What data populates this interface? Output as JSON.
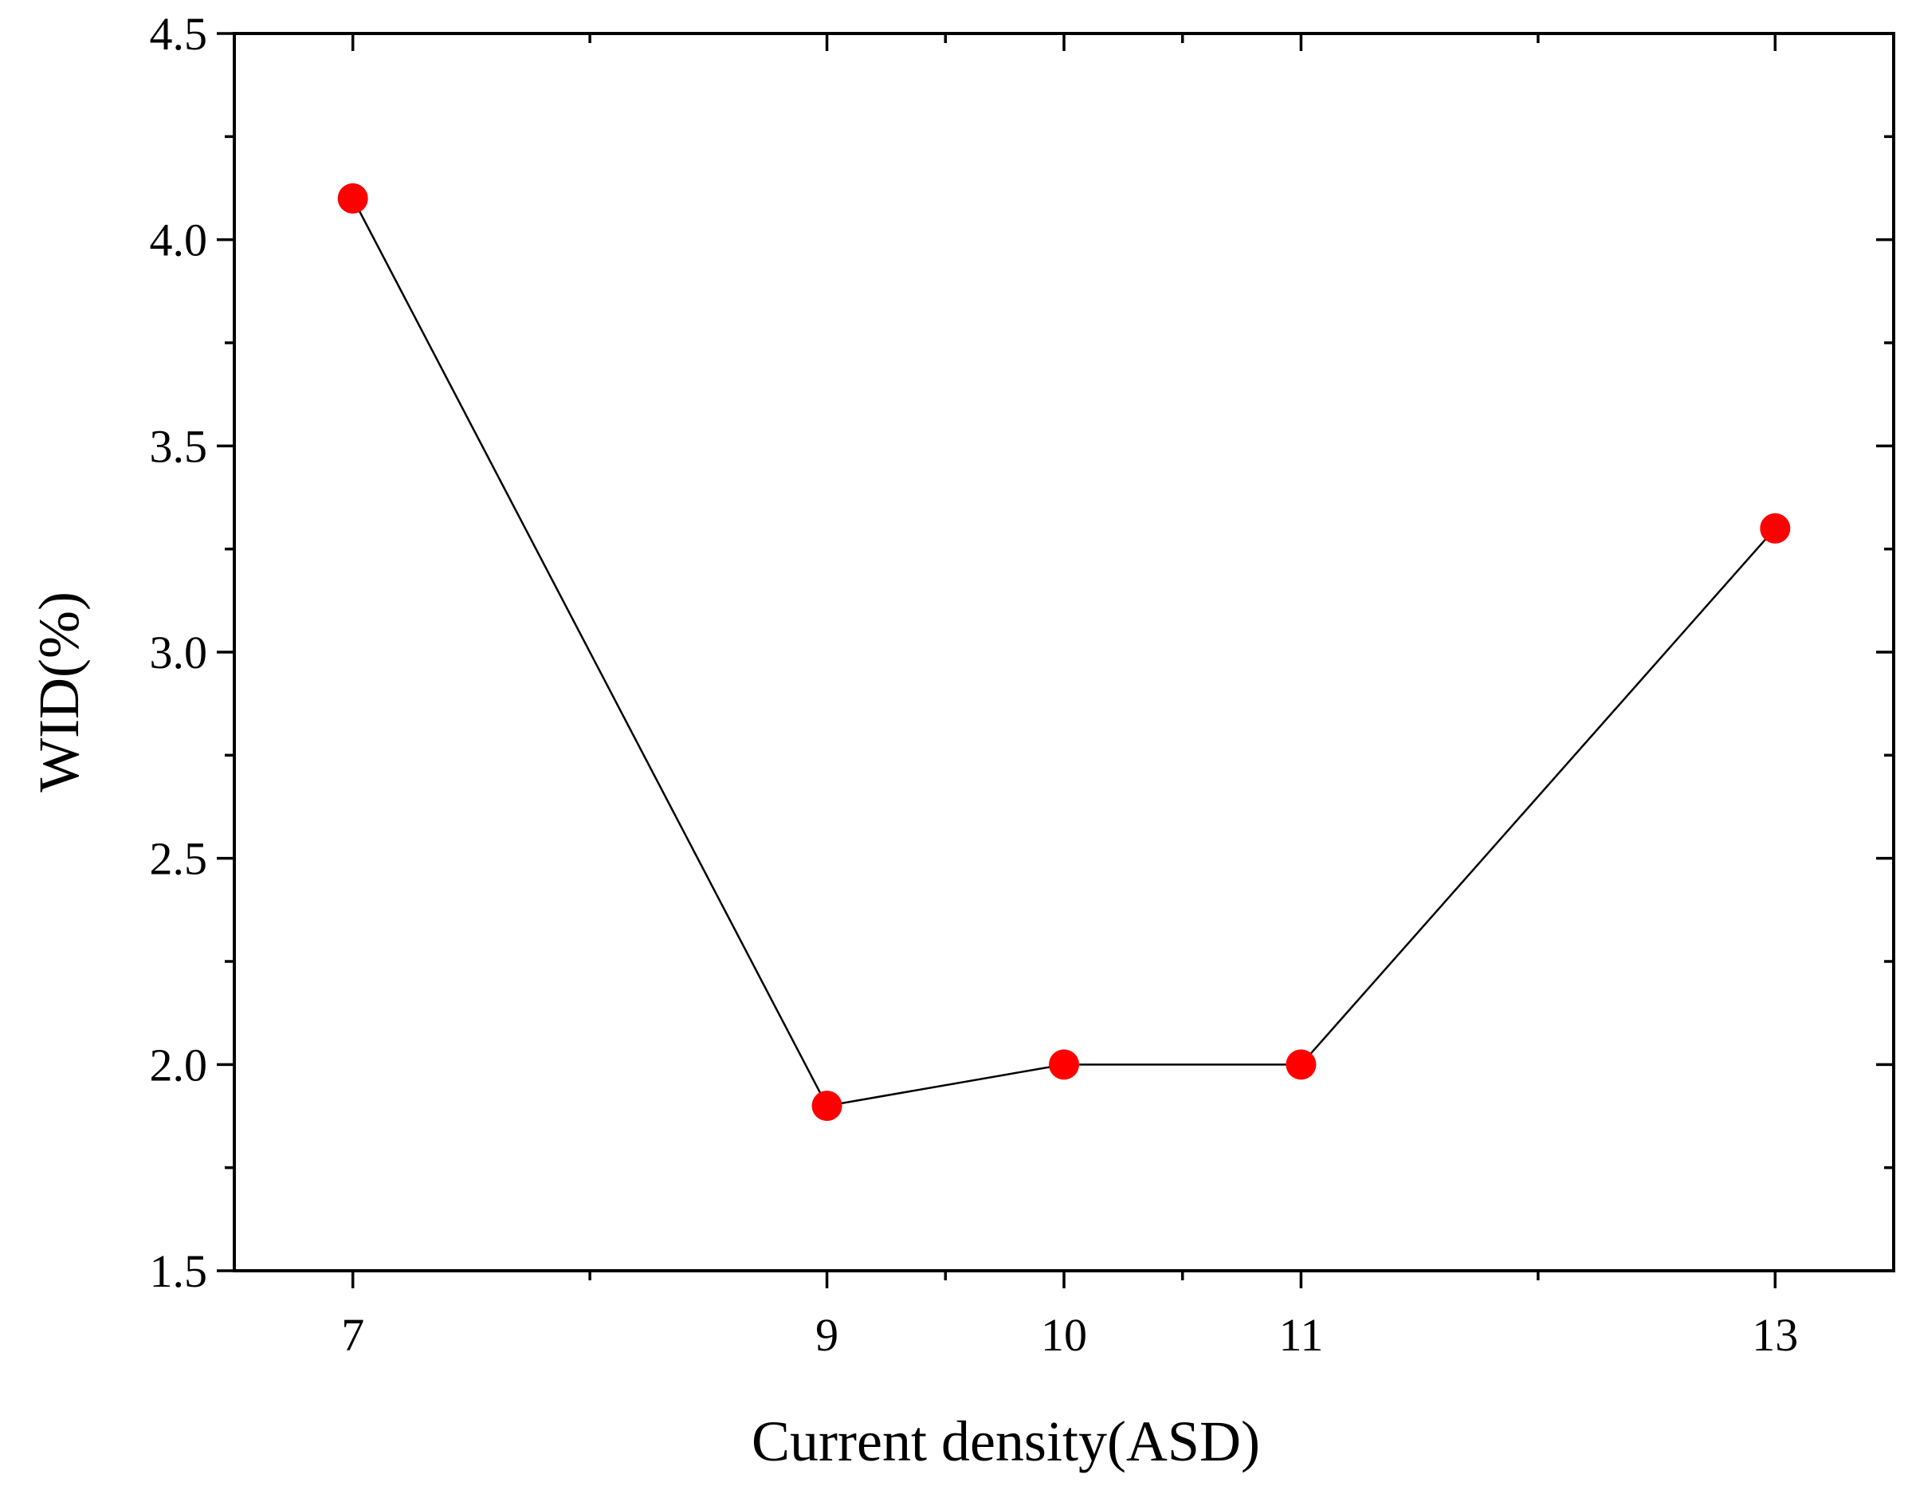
{
  "chart_data": {
    "type": "line",
    "xlabel": "Current density(ASD)",
    "ylabel": "WID(%)",
    "title": "",
    "xlim": [
      6.5,
      13.5
    ],
    "ylim": [
      1.5,
      4.5
    ],
    "x_major_ticks": [
      7,
      9,
      10,
      11,
      13
    ],
    "x_major_tick_labels": [
      "7",
      "9",
      "10",
      "11",
      "13"
    ],
    "x_minor_ticks": [
      8,
      9.5,
      10.5,
      12
    ],
    "y_major_ticks": [
      1.5,
      2.0,
      2.5,
      3.0,
      3.5,
      4.0,
      4.5
    ],
    "y_major_tick_labels": [
      "1.5",
      "2.0",
      "2.5",
      "3.0",
      "3.5",
      "4.0",
      "4.5"
    ],
    "y_minor_ticks": [
      1.75,
      2.25,
      2.75,
      3.25,
      3.75,
      4.25
    ],
    "series": [
      {
        "x": [
          7,
          9,
          10,
          11,
          13
        ],
        "y": [
          4.1,
          1.9,
          2.0,
          2.0,
          3.3
        ],
        "marker": "circle",
        "marker_color": "#ff0000",
        "line_color": "#000000"
      }
    ],
    "grid": false,
    "legend": "none"
  }
}
